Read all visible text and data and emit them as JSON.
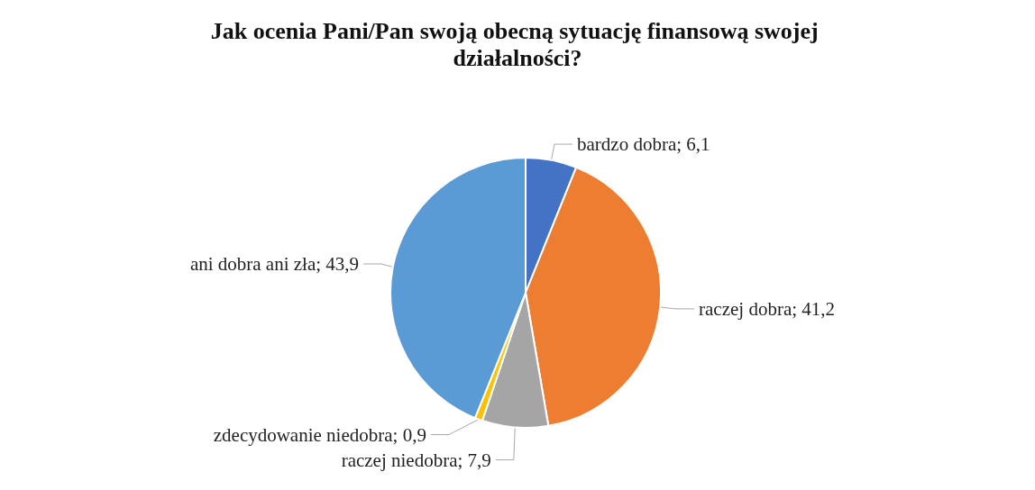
{
  "chart_data": {
    "type": "pie",
    "title": "Jak ocenia Pani/Pan swoją obecną sytuację finansową swojej działalności?",
    "categories": [
      "bardzo dobra",
      "raczej dobra",
      "raczej niedobra",
      "zdecydowanie niedobra",
      "ani dobra ani zła"
    ],
    "values": [
      6.1,
      41.2,
      7.9,
      0.9,
      43.9
    ],
    "value_labels": [
      "6,1",
      "41,2",
      "7,9",
      "0,9",
      "43,9"
    ],
    "colors": [
      "#4472c4",
      "#ed7d31",
      "#a5a5a5",
      "#ffc000",
      "#5b9bd5"
    ],
    "legend": false
  }
}
